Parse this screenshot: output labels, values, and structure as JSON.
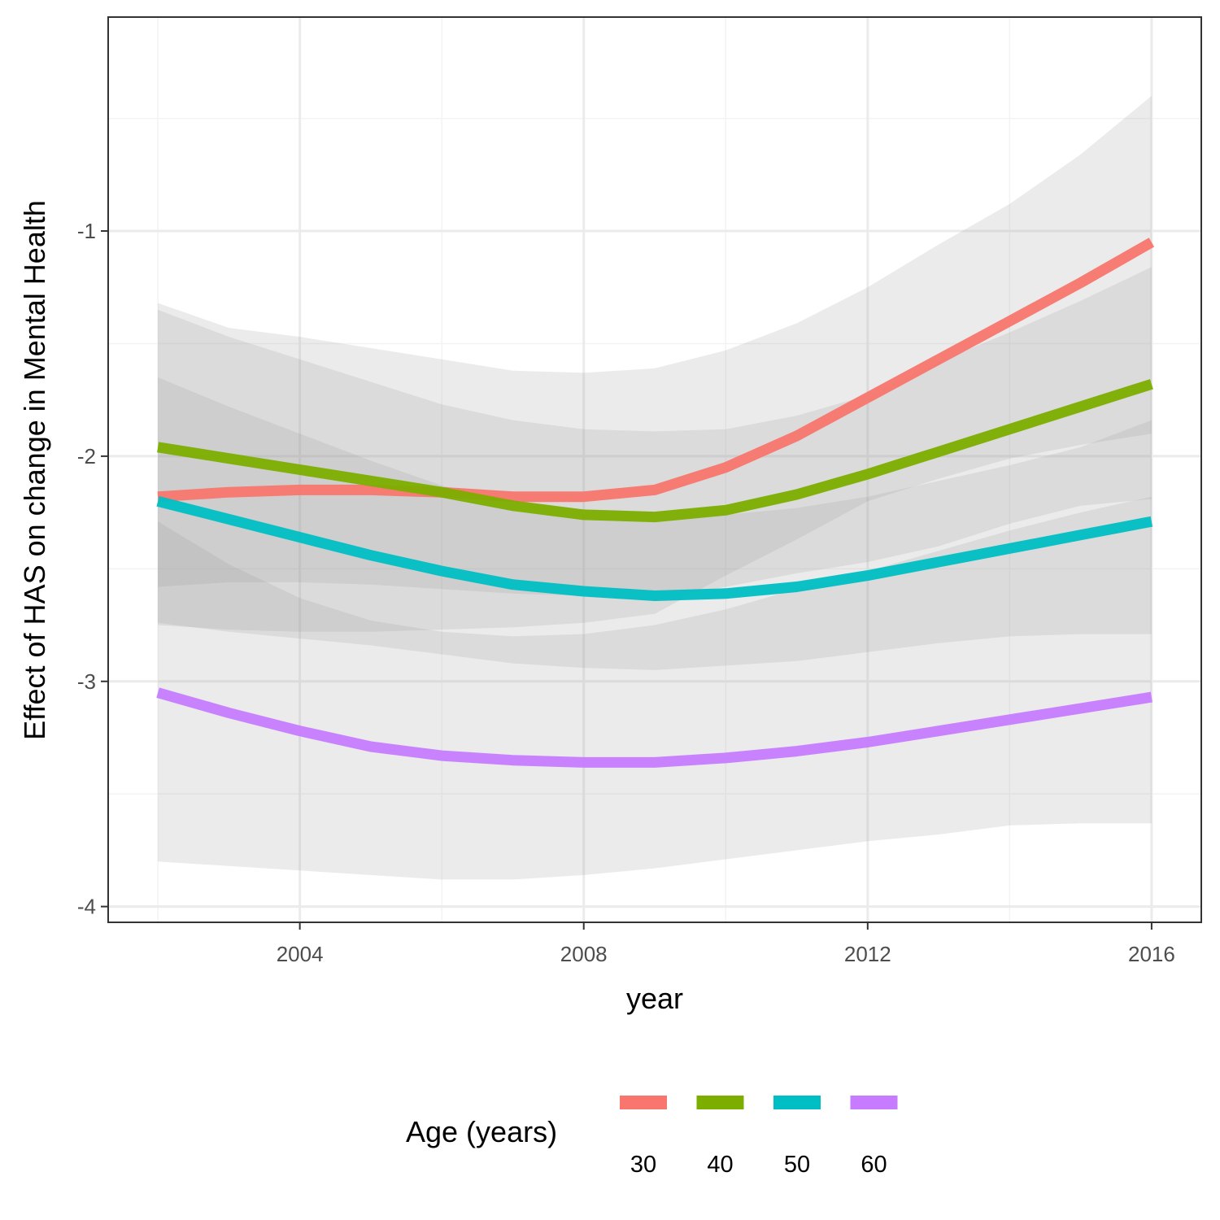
{
  "chart_data": {
    "type": "line",
    "title": "",
    "xlabel": "year",
    "ylabel": "Effect of HAS on change in Mental Health",
    "xlim": [
      2001.3,
      2016.7
    ],
    "ylim": [
      -4.07,
      -0.05
    ],
    "x_ticks": [
      2004,
      2008,
      2012,
      2016
    ],
    "x_tick_labels": [
      "2004",
      "2008",
      "2012",
      "2016"
    ],
    "y_ticks": [
      -4,
      -3,
      -2,
      -1
    ],
    "y_tick_labels": [
      "-4",
      "-3",
      "-2",
      "-1"
    ],
    "grid": true,
    "legend": {
      "title": "Age (years)",
      "position": "bottom"
    },
    "x": [
      2002,
      2003,
      2004,
      2005,
      2006,
      2007,
      2008,
      2009,
      2010,
      2011,
      2012,
      2013,
      2014,
      2015,
      2016
    ],
    "series": [
      {
        "name": "30",
        "color": "#F8766D",
        "values": [
          -2.18,
          -2.16,
          -2.15,
          -2.15,
          -2.16,
          -2.18,
          -2.18,
          -2.15,
          -2.05,
          -1.91,
          -1.74,
          -1.57,
          -1.4,
          -1.23,
          -1.05
        ],
        "ci_lower": [
          -2.75,
          -2.77,
          -2.78,
          -2.78,
          -2.77,
          -2.76,
          -2.74,
          -2.7,
          -2.53,
          -2.37,
          -2.2,
          -2.1,
          -2.01,
          -1.95,
          -1.9
        ],
        "ci_upper": [
          -1.32,
          -1.43,
          -1.47,
          -1.52,
          -1.57,
          -1.62,
          -1.63,
          -1.61,
          -1.53,
          -1.41,
          -1.25,
          -1.06,
          -0.88,
          -0.66,
          -0.4
        ]
      },
      {
        "name": "40",
        "color": "#7CAE00",
        "values": [
          -1.96,
          -2.01,
          -2.06,
          -2.11,
          -2.16,
          -2.22,
          -2.26,
          -2.27,
          -2.24,
          -2.17,
          -2.08,
          -1.98,
          -1.88,
          -1.78,
          -1.68
        ],
        "ci_lower": [
          -2.58,
          -2.56,
          -2.56,
          -2.57,
          -2.59,
          -2.61,
          -2.62,
          -2.63,
          -2.58,
          -2.52,
          -2.47,
          -2.4,
          -2.3,
          -2.22,
          -2.19
        ],
        "ci_upper": [
          -1.35,
          -1.47,
          -1.57,
          -1.67,
          -1.77,
          -1.84,
          -1.88,
          -1.89,
          -1.88,
          -1.82,
          -1.73,
          -1.58,
          -1.45,
          -1.31,
          -1.16
        ]
      },
      {
        "name": "50",
        "color": "#00BFC4",
        "values": [
          -2.2,
          -2.28,
          -2.36,
          -2.44,
          -2.51,
          -2.57,
          -2.6,
          -2.62,
          -2.61,
          -2.58,
          -2.53,
          -2.47,
          -2.41,
          -2.35,
          -2.29
        ],
        "ci_lower": [
          -2.74,
          -2.78,
          -2.81,
          -2.84,
          -2.88,
          -2.92,
          -2.94,
          -2.95,
          -2.93,
          -2.91,
          -2.87,
          -2.83,
          -2.8,
          -2.79,
          -2.79
        ],
        "ci_upper": [
          -1.65,
          -1.78,
          -1.9,
          -2.02,
          -2.13,
          -2.22,
          -2.26,
          -2.28,
          -2.26,
          -2.23,
          -2.18,
          -2.11,
          -2.04,
          -1.96,
          -1.84
        ]
      },
      {
        "name": "60",
        "color": "#C77CFF",
        "values": [
          -3.05,
          -3.14,
          -3.22,
          -3.29,
          -3.33,
          -3.35,
          -3.36,
          -3.36,
          -3.34,
          -3.31,
          -3.27,
          -3.22,
          -3.17,
          -3.12,
          -3.07
        ],
        "ci_lower": [
          -3.8,
          -3.82,
          -3.84,
          -3.86,
          -3.88,
          -3.88,
          -3.86,
          -3.83,
          -3.79,
          -3.75,
          -3.71,
          -3.68,
          -3.64,
          -3.63,
          -3.63
        ],
        "ci_upper": [
          -2.29,
          -2.48,
          -2.63,
          -2.73,
          -2.78,
          -2.8,
          -2.79,
          -2.75,
          -2.68,
          -2.59,
          -2.51,
          -2.42,
          -2.33,
          -2.25,
          -2.18
        ]
      }
    ]
  }
}
